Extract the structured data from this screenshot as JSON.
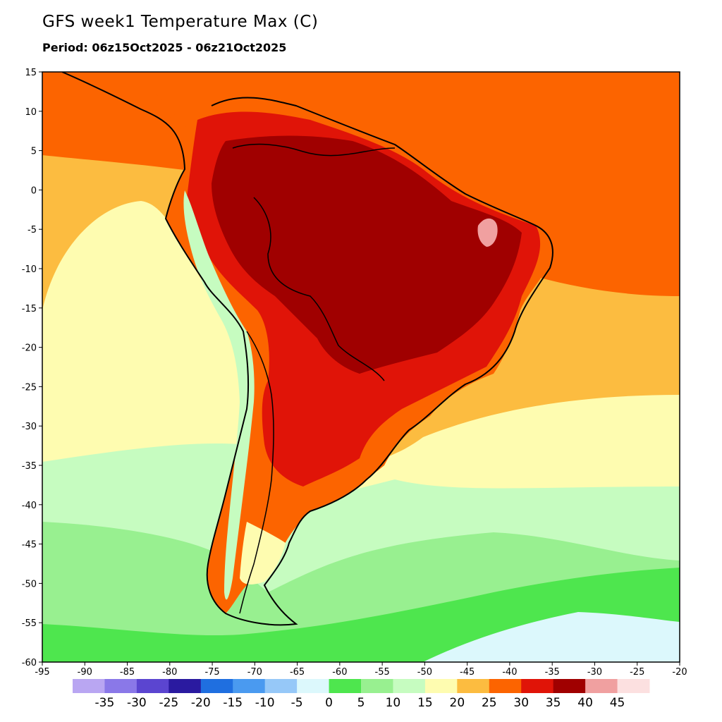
{
  "title": "GFS week1 Temperature Max (C)",
  "subtitle": "Period: 06z15Oct2025 - 06z21Oct2025",
  "map": {
    "lon_range": [
      -95,
      -20
    ],
    "lat_range": [
      -60,
      15
    ],
    "x_ticks": [
      -95,
      -90,
      -85,
      -80,
      -75,
      -70,
      -65,
      -60,
      -55,
      -50,
      -45,
      -40,
      -35,
      -30,
      -25,
      -20
    ],
    "y_ticks": [
      15,
      10,
      5,
      0,
      -5,
      -10,
      -15,
      -20,
      -25,
      -30,
      -35,
      -40,
      -45,
      -50,
      -55,
      -60
    ],
    "x_tick_labels": [
      "-95",
      "-90",
      "-85",
      "-80",
      "-75",
      "-70",
      "-65",
      "-60",
      "-55",
      "-50",
      "-45",
      "-40",
      "-35",
      "-30",
      "-25",
      "-20"
    ],
    "y_tick_labels": [
      "15",
      "10",
      "5",
      "0",
      "-5",
      "-10",
      "-15",
      "-20",
      "-25",
      "-30",
      "-35",
      "-40",
      "-45",
      "-50",
      "-55",
      "-60"
    ]
  },
  "colorbar": {
    "colors": [
      "#b9a6f2",
      "#8a78e8",
      "#5b45d0",
      "#2a1aa0",
      "#1f6fe0",
      "#4a9af0",
      "#96c8f8",
      "#dcf8fc",
      "#4ee64e",
      "#98f090",
      "#c6fcc0",
      "#fefcb0",
      "#fcbc40",
      "#fc6400",
      "#e01408",
      "#a00000",
      "#f0a0a0",
      "#fce0e0"
    ],
    "labels": [
      "-35",
      "-30",
      "-25",
      "-20",
      "-15",
      "-10",
      "-5",
      "0",
      "5",
      "10",
      "15",
      "20",
      "25",
      "30",
      "35",
      "40",
      "45"
    ]
  }
}
